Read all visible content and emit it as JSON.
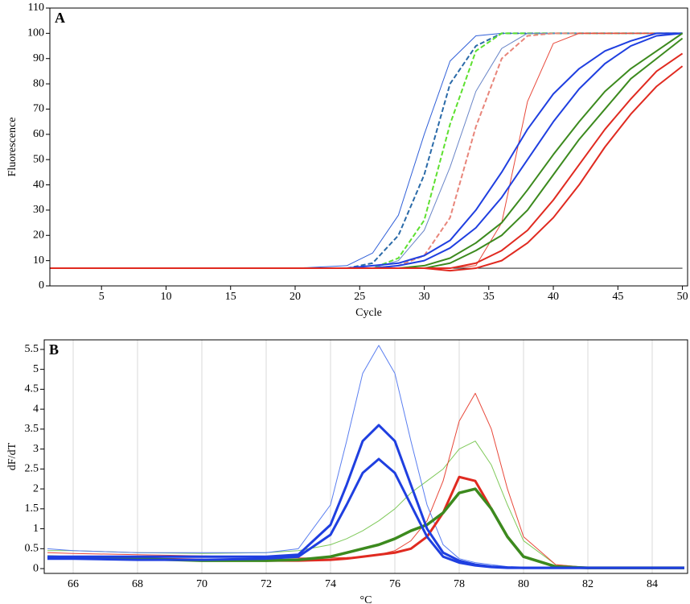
{
  "chart_data": [
    {
      "type": "line",
      "panel_label": "A",
      "x_label": "Cycle",
      "y_label": "Fluorescence",
      "xlim": [
        1,
        50.4
      ],
      "ylim": [
        0,
        110
      ],
      "xticks": [
        5,
        10,
        15,
        20,
        25,
        30,
        35,
        40,
        45,
        50
      ],
      "yticks": [
        0,
        10,
        20,
        30,
        40,
        50,
        60,
        70,
        80,
        90,
        100,
        110
      ],
      "grid": false,
      "x": [
        1,
        10,
        20,
        24,
        26,
        28,
        30,
        32,
        34,
        36,
        38,
        40,
        42,
        44,
        46,
        48,
        50
      ],
      "series": [
        {
          "color": "#000000",
          "line_width": 0.8,
          "dashed": false,
          "values": [
            7,
            7,
            7,
            7,
            7,
            7,
            7,
            7,
            7,
            7,
            7,
            7,
            7,
            7,
            7,
            7,
            7
          ]
        },
        {
          "color": "#2f5fd8",
          "line_width": 1,
          "dashed": false,
          "values": [
            7,
            7,
            7,
            8,
            13,
            28,
            60,
            89,
            99,
            100,
            100,
            100,
            100,
            100,
            100,
            100,
            100
          ]
        },
        {
          "color": "#2a6aa8",
          "line_width": 2,
          "dashed": true,
          "values": [
            7,
            7,
            7,
            7,
            9,
            20,
            44,
            80,
            95,
            100,
            100,
            100,
            100,
            100,
            100,
            100,
            100
          ]
        },
        {
          "color": "#5de02f",
          "line_width": 2,
          "dashed": true,
          "values": [
            7,
            7,
            7,
            7,
            7,
            11,
            26,
            64,
            93,
            100,
            100,
            100,
            100,
            100,
            100,
            100,
            100
          ]
        },
        {
          "color": "#6a86c8",
          "line_width": 1,
          "dashed": false,
          "values": [
            7,
            7,
            7,
            7,
            7,
            10,
            22,
            47,
            77,
            94,
            100,
            100,
            100,
            100,
            100,
            100,
            100
          ]
        },
        {
          "color": "#e8857a",
          "line_width": 2,
          "dashed": true,
          "values": [
            7,
            7,
            7,
            7,
            7,
            8,
            12,
            27,
            63,
            90,
            99,
            100,
            100,
            100,
            100,
            100,
            100
          ]
        },
        {
          "color": "#e8483a",
          "line_width": 1,
          "dashed": false,
          "values": [
            7,
            7,
            7,
            7,
            7,
            7,
            7,
            7,
            8,
            25,
            73,
            96,
            100,
            100,
            100,
            100,
            100
          ]
        },
        {
          "color": "#1f3fe0",
          "line_width": 2,
          "dashed": false,
          "values": [
            7,
            7,
            7,
            7,
            8,
            9,
            12,
            18,
            30,
            45,
            62,
            76,
            86,
            93,
            97,
            100,
            100
          ]
        },
        {
          "color": "#1f3fe0",
          "line_width": 2,
          "dashed": false,
          "values": [
            7,
            7,
            7,
            7,
            7,
            8,
            10,
            15,
            23,
            35,
            50,
            65,
            78,
            88,
            95,
            99,
            100
          ]
        },
        {
          "color": "#3c8a1e",
          "line_width": 2,
          "dashed": false,
          "values": [
            7,
            7,
            7,
            7,
            7,
            7,
            8,
            11,
            17,
            25,
            38,
            52,
            65,
            77,
            86,
            93,
            100
          ]
        },
        {
          "color": "#3c8a1e",
          "line_width": 2,
          "dashed": false,
          "values": [
            7,
            7,
            7,
            7,
            7,
            7,
            7,
            9,
            14,
            20,
            30,
            44,
            58,
            70,
            82,
            90,
            98
          ]
        },
        {
          "color": "#e02a20",
          "line_width": 2,
          "dashed": false,
          "values": [
            7,
            7,
            7,
            7,
            7,
            7,
            7,
            7,
            9,
            14,
            22,
            34,
            48,
            62,
            74,
            85,
            92
          ]
        },
        {
          "color": "#e02a20",
          "line_width": 2,
          "dashed": false,
          "values": [
            7,
            7,
            7,
            7,
            7,
            7,
            7,
            6,
            7,
            10,
            17,
            27,
            40,
            55,
            68,
            79,
            87
          ]
        }
      ]
    },
    {
      "type": "line",
      "panel_label": "B",
      "x_label": "°C",
      "y_label": "dF/dT",
      "xlim": [
        65.1,
        85.1
      ],
      "ylim": [
        -0.12,
        5.74
      ],
      "xticks": [
        66,
        68,
        70,
        72,
        74,
        76,
        78,
        80,
        82,
        84
      ],
      "yticks": [
        0,
        0.5,
        1,
        1.5,
        2,
        2.5,
        3,
        3.5,
        4,
        4.5,
        5,
        5.5
      ],
      "grid": true,
      "x": [
        65.2,
        66,
        68,
        70,
        72,
        73,
        74,
        74.5,
        75,
        75.5,
        76,
        76.5,
        77,
        77.5,
        78,
        78.5,
        79,
        79.5,
        80,
        81,
        82,
        84,
        85
      ],
      "series": [
        {
          "color": "#7fc95a",
          "line_width": 1,
          "dashed": false,
          "values": [
            0.45,
            0.45,
            0.4,
            0.38,
            0.4,
            0.45,
            0.6,
            0.75,
            0.95,
            1.2,
            1.5,
            1.9,
            2.2,
            2.5,
            3.0,
            3.2,
            2.6,
            1.6,
            0.7,
            0.1,
            0.03,
            0.02,
            0.02
          ]
        },
        {
          "color": "#e8483a",
          "line_width": 1,
          "dashed": false,
          "values": [
            0.4,
            0.38,
            0.35,
            0.32,
            0.28,
            0.27,
            0.27,
            0.28,
            0.3,
            0.35,
            0.45,
            0.7,
            1.2,
            2.2,
            3.7,
            4.4,
            3.5,
            2.0,
            0.8,
            0.1,
            0.03,
            0.02,
            0.02
          ]
        },
        {
          "color": "#5a7ef0",
          "line_width": 1,
          "dashed": false,
          "values": [
            0.5,
            0.45,
            0.4,
            0.4,
            0.4,
            0.5,
            1.6,
            3.2,
            4.9,
            5.6,
            4.9,
            3.2,
            1.6,
            0.6,
            0.25,
            0.15,
            0.1,
            0.05,
            0.02,
            0.02,
            0.02,
            0.02,
            0.02
          ]
        },
        {
          "color": "#e02a20",
          "line_width": 3,
          "dashed": false,
          "values": [
            0.3,
            0.28,
            0.25,
            0.22,
            0.2,
            0.2,
            0.22,
            0.25,
            0.3,
            0.35,
            0.4,
            0.5,
            0.8,
            1.4,
            2.3,
            2.2,
            1.5,
            0.8,
            0.3,
            0.05,
            0.02,
            0.02,
            0.02
          ]
        },
        {
          "color": "#3c8a1e",
          "line_width": 3.5,
          "dashed": false,
          "values": [
            0.3,
            0.28,
            0.25,
            0.2,
            0.2,
            0.22,
            0.3,
            0.4,
            0.5,
            0.6,
            0.75,
            0.95,
            1.1,
            1.4,
            1.9,
            2.0,
            1.5,
            0.8,
            0.3,
            0.05,
            0.02,
            0.02,
            0.02
          ]
        },
        {
          "color": "#1f3fe0",
          "line_width": 3,
          "dashed": false,
          "values": [
            0.3,
            0.3,
            0.3,
            0.3,
            0.3,
            0.35,
            1.1,
            2.1,
            3.2,
            3.6,
            3.2,
            2.1,
            1.0,
            0.4,
            0.2,
            0.1,
            0.05,
            0.03,
            0.02,
            0.02,
            0.02,
            0.02,
            0.02
          ]
        },
        {
          "color": "#1f3fe0",
          "line_width": 3,
          "dashed": false,
          "values": [
            0.25,
            0.25,
            0.22,
            0.22,
            0.25,
            0.3,
            0.85,
            1.6,
            2.4,
            2.75,
            2.4,
            1.6,
            0.8,
            0.3,
            0.15,
            0.08,
            0.04,
            0.02,
            0.02,
            0.02,
            0.02,
            0.02,
            0.02
          ]
        }
      ]
    }
  ]
}
